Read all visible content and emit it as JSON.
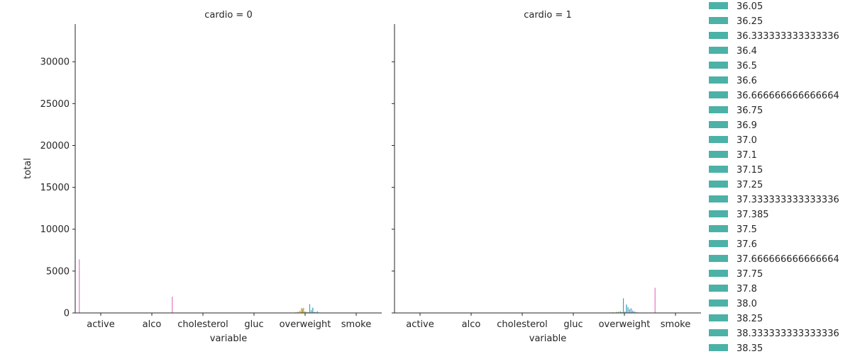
{
  "chart_data": {
    "type": "bar",
    "x_categories": [
      "active",
      "alco",
      "cholesterol",
      "gluc",
      "overweight",
      "smoke"
    ],
    "xlabel": "variable",
    "ylabel": "total",
    "ylim": [
      0,
      34500
    ],
    "y_ticks": [
      0,
      5000,
      10000,
      15000,
      20000,
      25000,
      30000
    ],
    "facets": [
      {
        "title": "cardio = 0",
        "bars": [
          {
            "category": "active",
            "offset": -0.42,
            "value": 6400,
            "color": "#e377c2"
          },
          {
            "category": "alco",
            "offset": 0.4,
            "value": 1950,
            "color": "#e377c2"
          },
          {
            "category": "overweight",
            "offset": -0.18,
            "value": 80,
            "color": "#c49a2c"
          },
          {
            "category": "overweight",
            "offset": -0.14,
            "value": 150,
            "color": "#c49a2c"
          },
          {
            "category": "overweight",
            "offset": -0.1,
            "value": 280,
            "color": "#b8a030"
          },
          {
            "category": "overweight",
            "offset": -0.07,
            "value": 600,
            "color": "#c49a2c"
          },
          {
            "category": "overweight",
            "offset": -0.05,
            "value": 480,
            "color": "#b8a030"
          },
          {
            "category": "overweight",
            "offset": -0.03,
            "value": 620,
            "color": "#c49a2c"
          },
          {
            "category": "overweight",
            "offset": 0.0,
            "value": 180,
            "color": "#8aa838"
          },
          {
            "category": "overweight",
            "offset": 0.03,
            "value": 120,
            "color": "#5aab5a"
          },
          {
            "category": "overweight",
            "offset": 0.06,
            "value": 90,
            "color": "#48ae7a"
          },
          {
            "category": "overweight",
            "offset": 0.09,
            "value": 1050,
            "color": "#3ba8a0"
          },
          {
            "category": "overweight",
            "offset": 0.12,
            "value": 350,
            "color": "#3aa6b0"
          },
          {
            "category": "overweight",
            "offset": 0.15,
            "value": 620,
            "color": "#2f96c8"
          },
          {
            "category": "overweight",
            "offset": 0.18,
            "value": 120,
            "color": "#4a8fd6"
          },
          {
            "category": "overweight",
            "offset": 0.21,
            "value": 80,
            "color": "#6f86e0"
          },
          {
            "category": "overweight",
            "offset": 0.24,
            "value": 200,
            "color": "#3ba8a0"
          },
          {
            "category": "overweight",
            "offset": 0.27,
            "value": 60,
            "color": "#2f96c8"
          },
          {
            "category": "overweight",
            "offset": 0.3,
            "value": 40,
            "color": "#a07de0"
          },
          {
            "category": "overweight",
            "offset": 0.33,
            "value": 30,
            "color": "#6f86e0"
          }
        ]
      },
      {
        "title": "cardio = 1",
        "bars": [
          {
            "category": "overweight",
            "offset": -0.28,
            "value": 60,
            "color": "#c49a2c"
          },
          {
            "category": "overweight",
            "offset": -0.22,
            "value": 90,
            "color": "#b8a030"
          },
          {
            "category": "overweight",
            "offset": -0.16,
            "value": 120,
            "color": "#8aa838"
          },
          {
            "category": "overweight",
            "offset": -0.12,
            "value": 140,
            "color": "#5aab5a"
          },
          {
            "category": "overweight",
            "offset": -0.08,
            "value": 200,
            "color": "#48ae7a"
          },
          {
            "category": "overweight",
            "offset": -0.05,
            "value": 100,
            "color": "#3ba8a0"
          },
          {
            "category": "overweight",
            "offset": -0.02,
            "value": 1750,
            "color": "#3ba8a0"
          },
          {
            "category": "overweight",
            "offset": 0.01,
            "value": 150,
            "color": "#3aa6b0"
          },
          {
            "category": "overweight",
            "offset": 0.04,
            "value": 1000,
            "color": "#2f96c8"
          },
          {
            "category": "overweight",
            "offset": 0.07,
            "value": 700,
            "color": "#3ba8a0"
          },
          {
            "category": "overweight",
            "offset": 0.1,
            "value": 450,
            "color": "#4a8fd6"
          },
          {
            "category": "overweight",
            "offset": 0.13,
            "value": 550,
            "color": "#2f96c8"
          },
          {
            "category": "overweight",
            "offset": 0.16,
            "value": 300,
            "color": "#6f86e0"
          },
          {
            "category": "overweight",
            "offset": 0.19,
            "value": 200,
            "color": "#3ba8a0"
          },
          {
            "category": "overweight",
            "offset": 0.22,
            "value": 120,
            "color": "#8f7ee0"
          },
          {
            "category": "overweight",
            "offset": 0.26,
            "value": 80,
            "color": "#a07de0"
          },
          {
            "category": "overweight",
            "offset": 0.3,
            "value": 40,
            "color": "#6f86e0"
          },
          {
            "category": "smoke",
            "offset": -0.4,
            "value": 3000,
            "color": "#e377c2"
          }
        ]
      }
    ],
    "legend": {
      "placement": "right",
      "entries": [
        {
          "label": "36.05",
          "color": "#4cb1a6"
        },
        {
          "label": "36.25",
          "color": "#4cb1a6"
        },
        {
          "label": "36.333333333333336",
          "color": "#4cb1a6"
        },
        {
          "label": "36.4",
          "color": "#4cb1a6"
        },
        {
          "label": "36.5",
          "color": "#4cb1a6"
        },
        {
          "label": "36.6",
          "color": "#4cb1a6"
        },
        {
          "label": "36.666666666666664",
          "color": "#4cb1a6"
        },
        {
          "label": "36.75",
          "color": "#4cb1a6"
        },
        {
          "label": "36.9",
          "color": "#4cb1a6"
        },
        {
          "label": "37.0",
          "color": "#4cb1a6"
        },
        {
          "label": "37.1",
          "color": "#4cb1a6"
        },
        {
          "label": "37.15",
          "color": "#4cb1a6"
        },
        {
          "label": "37.25",
          "color": "#4cb1a6"
        },
        {
          "label": "37.333333333333336",
          "color": "#4cb1a6"
        },
        {
          "label": "37.385",
          "color": "#4cb1a6"
        },
        {
          "label": "37.5",
          "color": "#4cb1a6"
        },
        {
          "label": "37.6",
          "color": "#4cb1a6"
        },
        {
          "label": "37.666666666666664",
          "color": "#4cb1a6"
        },
        {
          "label": "37.75",
          "color": "#4cb1a6"
        },
        {
          "label": "37.8",
          "color": "#4cb1a6"
        },
        {
          "label": "38.0",
          "color": "#4cb1a6"
        },
        {
          "label": "38.25",
          "color": "#4cb1a6"
        },
        {
          "label": "38.333333333333336",
          "color": "#4cb1a6"
        },
        {
          "label": "38.35",
          "color": "#4cb1a6"
        }
      ]
    },
    "grid": false
  }
}
